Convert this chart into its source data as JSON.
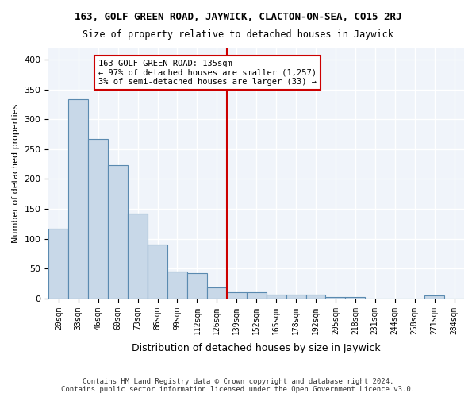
{
  "title": "163, GOLF GREEN ROAD, JAYWICK, CLACTON-ON-SEA, CO15 2RJ",
  "subtitle": "Size of property relative to detached houses in Jaywick",
  "xlabel": "Distribution of detached houses by size in Jaywick",
  "ylabel": "Number of detached properties",
  "bar_color": "#c8d8e8",
  "bar_edge_color": "#5a8ab0",
  "background_color": "#f0f4fa",
  "grid_color": "#ffffff",
  "annotation_box_color": "#cc0000",
  "vline_color": "#cc0000",
  "vline_x": 8.5,
  "annotation_text": "163 GOLF GREEN ROAD: 135sqm\n← 97% of detached houses are smaller (1,257)\n3% of semi-detached houses are larger (33) →",
  "footer": "Contains HM Land Registry data © Crown copyright and database right 2024.\nContains public sector information licensed under the Open Government Licence v3.0.",
  "bins": [
    "20sqm",
    "33sqm",
    "46sqm",
    "60sqm",
    "73sqm",
    "86sqm",
    "99sqm",
    "112sqm",
    "126sqm",
    "139sqm",
    "152sqm",
    "165sqm",
    "178sqm",
    "192sqm",
    "205sqm",
    "218sqm",
    "231sqm",
    "244sqm",
    "258sqm",
    "271sqm",
    "284sqm"
  ],
  "values": [
    117,
    333,
    267,
    223,
    142,
    90,
    45,
    42,
    19,
    10,
    11,
    6,
    6,
    6,
    3,
    3,
    0,
    0,
    0,
    5,
    0
  ],
  "ylim": [
    0,
    420
  ],
  "yticks": [
    0,
    50,
    100,
    150,
    200,
    250,
    300,
    350,
    400
  ]
}
